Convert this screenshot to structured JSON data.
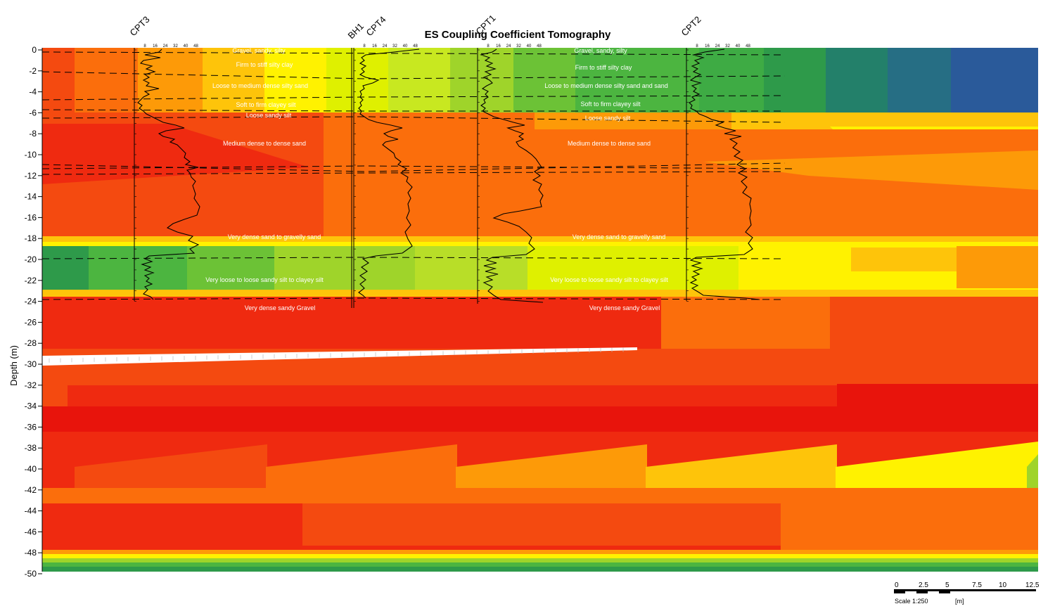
{
  "title": "ES Coupling Coefficient Tomography",
  "y_axis": {
    "label": "Depth (m)",
    "ticks": [
      "0",
      "-2",
      "-4",
      "-6",
      "-8",
      "-10",
      "-12",
      "-14",
      "-16",
      "-18",
      "-20",
      "-22",
      "-24",
      "-26",
      "-28",
      "-30",
      "-32",
      "-34",
      "-36",
      "-38",
      "-40",
      "-42",
      "-44",
      "-46",
      "-48",
      "-50"
    ]
  },
  "boreholes": [
    "CPT3",
    "BH1",
    "CPT4",
    "CPT1",
    "CPT2"
  ],
  "cpt_scale_ticks": [
    "8",
    "16",
    "24",
    "32",
    "40",
    "48"
  ],
  "layers_left": [
    "Gravel, sandy, silty",
    "Firm to stiff silty clay",
    "Loose to medium dense silty sand",
    "Soft to firm clayey silt",
    "Loose sandy silt",
    "Medium dense to dense sand",
    "Very dense sand to gravelly sand",
    "Very loose to loose sandy silt to clayey silt",
    "Very dense sandy Gravel"
  ],
  "layers_right": [
    "Gravel, sandy, silty",
    "Firm to stiff silty clay",
    "Loose to medium dense silty sand and sand",
    "Soft to firm clayey silt",
    "Loose sandy silt",
    "Medium dense to dense sand",
    "Very dense sand to gravelly sand",
    "Very loose to loose sandy silt to clayey silt",
    "Very dense sandy Gravel"
  ],
  "scale_bar": {
    "ticks": [
      "0",
      "2.5",
      "5",
      "7.5",
      "10",
      "12.5"
    ],
    "scale_label": "Scale 1:250",
    "unit": "[m]"
  },
  "colors": {
    "dark_red": "#e8140c",
    "red": "#ef2a10",
    "red_orange": "#f44a10",
    "orange": "#fb6e0c",
    "orange_yellow": "#fd9a08",
    "yellow_orange": "#fec40a",
    "yellow": "#fff200",
    "yellow_green": "#dff000",
    "light_green": "#9fd42a",
    "green": "#4cb540",
    "dark_green": "#2e9a4a",
    "teal": "#23806a",
    "blue": "#2a5a9a"
  }
}
